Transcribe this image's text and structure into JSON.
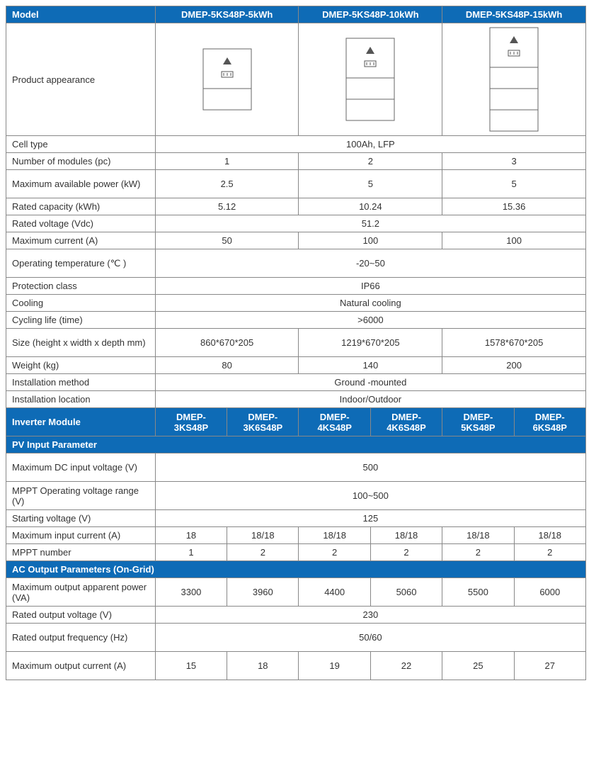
{
  "colors": {
    "header_bg": "#0e6bb6",
    "header_fg": "#ffffff",
    "border": "#888888",
    "text": "#333333",
    "bg": "#ffffff"
  },
  "model_section": {
    "title": "Model",
    "columns": [
      "DMEP-5KS48P-5kWh",
      "DMEP-5KS48P-10kWh",
      "DMEP-5KS48P-15kWh"
    ],
    "appearance_label": "Product appearance",
    "appearance_modules": [
      1,
      2,
      3
    ],
    "rows": [
      {
        "label": "Cell type",
        "span": true,
        "value": "100Ah,  LFP"
      },
      {
        "label": "Number of modules (pc)",
        "values": [
          "1",
          "2",
          "3"
        ]
      },
      {
        "label": "Maximum available power (kW)",
        "tall": true,
        "values": [
          "2.5",
          "5",
          "5"
        ]
      },
      {
        "label": "Rated capacity (kWh)",
        "values": [
          "5.12",
          "10.24",
          "15.36"
        ]
      },
      {
        "label": "Rated voltage (Vdc)",
        "span": true,
        "value": "51.2"
      },
      {
        "label": "Maximum current (A)",
        "values": [
          "50",
          "100",
          "100"
        ]
      },
      {
        "label": "Operating temperature (℃ )",
        "tall": true,
        "span": true,
        "value": "-20~50"
      },
      {
        "label": "Protection class",
        "span": true,
        "value": "IP66"
      },
      {
        "label": "Cooling",
        "span": true,
        "value": "Natural cooling"
      },
      {
        "label": "Cycling life (time)",
        "span": true,
        "value": ">6000"
      },
      {
        "label": "Size (height x width x depth mm)",
        "tall": true,
        "values": [
          "860*670*205",
          "1219*670*205",
          "1578*670*205"
        ]
      },
      {
        "label": "Weight (kg)",
        "values": [
          "80",
          "140",
          "200"
        ]
      },
      {
        "label": "Installation method",
        "span": true,
        "value": "Ground -mounted"
      },
      {
        "label": "Installation location",
        "span": true,
        "value": "Indoor/Outdoor"
      }
    ]
  },
  "inverter_section": {
    "title": "Inverter Module",
    "columns": [
      "DMEP-3KS48P",
      "DMEP-3K6S48P",
      "DMEP-4KS48P",
      "DMEP-4K6S48P",
      "DMEP-5KS48P",
      "DMEP-6KS48P"
    ],
    "groups": [
      {
        "title": "PV Input Parameter",
        "rows": [
          {
            "label": "Maximum DC input voltage (V)",
            "tall": true,
            "span": true,
            "value": "500"
          },
          {
            "label": "MPPT Operating voltage range (V)",
            "tall": true,
            "span": true,
            "value": "100~500"
          },
          {
            "label": "Starting voltage (V)",
            "span": true,
            "value": "125"
          },
          {
            "label": "Maximum input current (A)",
            "values": [
              "18",
              "18/18",
              "18/18",
              "18/18",
              "18/18",
              "18/18"
            ]
          },
          {
            "label": "MPPT number",
            "values": [
              "1",
              "2",
              "2",
              "2",
              "2",
              "2"
            ]
          }
        ]
      },
      {
        "title": "AC Output Parameters (On-Grid)",
        "rows": [
          {
            "label": "Maximum output apparent power (VA)",
            "tall": true,
            "values": [
              "3300",
              "3960",
              "4400",
              "5060",
              "5500",
              "6000"
            ]
          },
          {
            "label": "Rated output voltage (V)",
            "span": true,
            "value": "230"
          },
          {
            "label": "Rated output frequency (Hz)",
            "tall": true,
            "span": true,
            "value": "50/60"
          },
          {
            "label": "Maximum output current (A)",
            "tall": true,
            "values": [
              "15",
              "18",
              "19",
              "22",
              "25",
              "27"
            ]
          }
        ]
      }
    ]
  }
}
